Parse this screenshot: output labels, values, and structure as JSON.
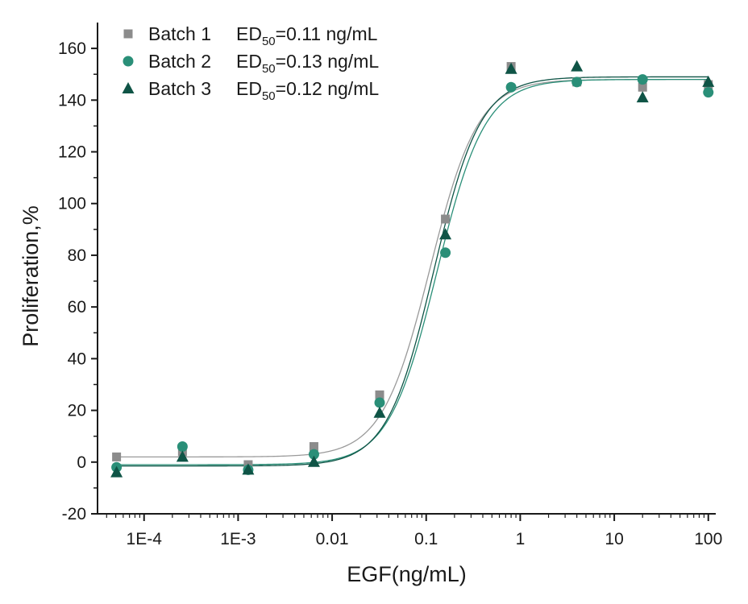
{
  "chart_data": {
    "type": "scatter",
    "title": "",
    "xlabel": "EGF(ng/mL)",
    "ylabel": "Proliferation,%",
    "x_scale": "log",
    "xlim": [
      3.2e-05,
      120
    ],
    "ylim": [
      -20,
      170
    ],
    "x_ticks": [
      {
        "value": 0.0001,
        "label": "1E-4"
      },
      {
        "value": 0.001,
        "label": "1E-3"
      },
      {
        "value": 0.01,
        "label": "0.01"
      },
      {
        "value": 0.1,
        "label": "0.1"
      },
      {
        "value": 1,
        "label": "1"
      },
      {
        "value": 10,
        "label": "10"
      },
      {
        "value": 100,
        "label": "100"
      }
    ],
    "y_ticks": [
      {
        "value": -20,
        "label": "-20"
      },
      {
        "value": 0,
        "label": "0"
      },
      {
        "value": 20,
        "label": "20"
      },
      {
        "value": 40,
        "label": "40"
      },
      {
        "value": 60,
        "label": "60"
      },
      {
        "value": 80,
        "label": "80"
      },
      {
        "value": 100,
        "label": "100"
      },
      {
        "value": 120,
        "label": "120"
      },
      {
        "value": 140,
        "label": "140"
      },
      {
        "value": 160,
        "label": "160"
      }
    ],
    "legend_position": "top-left",
    "series": [
      {
        "name": "Batch 1",
        "ed_prefix": "ED",
        "ed_sub": "50",
        "ed_value": "=0.11 ng/mL",
        "marker": "square",
        "color": "#8c8c8c",
        "curve_color": "#9a9a9a",
        "x": [
          5.1e-05,
          0.000256,
          0.00128,
          0.0064,
          0.032,
          0.16,
          0.8,
          4,
          20,
          100
        ],
        "y": [
          2,
          4,
          -1,
          6,
          26,
          94,
          153,
          147,
          145,
          146
        ],
        "fit": {
          "bottom": 2,
          "top": 148,
          "ec50": 0.11,
          "hill": 1.7
        }
      },
      {
        "name": "Batch 2",
        "ed_prefix": "ED",
        "ed_sub": "50",
        "ed_value": "=0.13 ng/mL",
        "marker": "circle",
        "color": "#2a8f78",
        "curve_color": "#2a8f78",
        "x": [
          5.1e-05,
          0.000256,
          0.00128,
          0.0064,
          0.032,
          0.16,
          0.8,
          4,
          20,
          100
        ],
        "y": [
          -2,
          6,
          -3,
          3,
          23,
          81,
          145,
          147,
          148,
          143
        ],
        "fit": {
          "bottom": -1,
          "top": 148,
          "ec50": 0.13,
          "hill": 1.7
        }
      },
      {
        "name": "Batch 3",
        "ed_prefix": "ED",
        "ed_sub": "50",
        "ed_value": "=0.12 ng/mL",
        "marker": "triangle",
        "color": "#0f5446",
        "curve_color": "#0f5446",
        "x": [
          5.1e-05,
          0.000256,
          0.00128,
          0.0064,
          0.032,
          0.16,
          0.8,
          4,
          20,
          100
        ],
        "y": [
          -4,
          2,
          -3,
          0,
          19,
          88,
          152,
          153,
          141,
          147
        ],
        "fit": {
          "bottom": -1.5,
          "top": 149,
          "ec50": 0.12,
          "hill": 1.75
        }
      }
    ]
  }
}
